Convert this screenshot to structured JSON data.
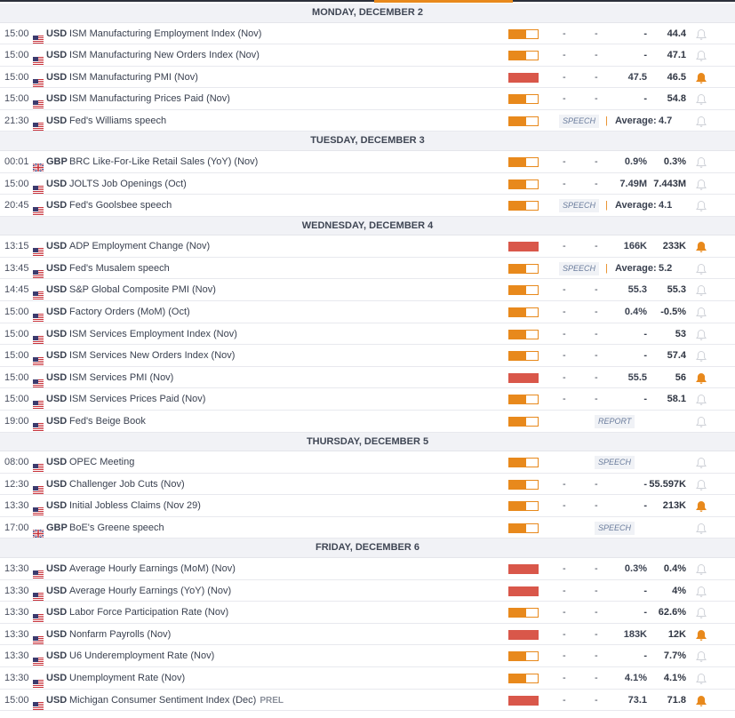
{
  "colors": {
    "accent": "#e8891c",
    "high_impact": "#d9574a",
    "medium_impact": "#e8891c"
  },
  "days": [
    {
      "label": "MONDAY, DECEMBER 2",
      "events": [
        {
          "time": "15:00",
          "country": "us",
          "currency": "USD",
          "name": "ISM Manufacturing Employment Index (Nov)",
          "impact": "medium",
          "actual": "-",
          "forecast": "-",
          "c3": "-",
          "previous": "44.4",
          "alert": false
        },
        {
          "time": "15:00",
          "country": "us",
          "currency": "USD",
          "name": "ISM Manufacturing New Orders Index (Nov)",
          "impact": "medium",
          "actual": "-",
          "forecast": "-",
          "c3": "-",
          "previous": "47.1",
          "alert": false
        },
        {
          "time": "15:00",
          "country": "us",
          "currency": "USD",
          "name": "ISM Manufacturing PMI (Nov)",
          "impact": "high",
          "actual": "-",
          "forecast": "-",
          "c3": "47.5",
          "previous": "46.5",
          "alert": true
        },
        {
          "time": "15:00",
          "country": "us",
          "currency": "USD",
          "name": "ISM Manufacturing Prices Paid (Nov)",
          "impact": "medium",
          "actual": "-",
          "forecast": "-",
          "c3": "-",
          "previous": "54.8",
          "alert": false
        },
        {
          "time": "21:30",
          "country": "us",
          "currency": "USD",
          "name": "Fed's Williams speech",
          "impact": "medium",
          "badge": "SPEECH",
          "avg_label": "Average:",
          "avg": "4.7",
          "alert": false
        }
      ]
    },
    {
      "label": "TUESDAY, DECEMBER 3",
      "events": [
        {
          "time": "00:01",
          "country": "gb",
          "currency": "GBP",
          "name": "BRC Like-For-Like Retail Sales (YoY) (Nov)",
          "impact": "medium",
          "actual": "-",
          "forecast": "-",
          "c3": "0.9%",
          "previous": "0.3%",
          "alert": false
        },
        {
          "time": "15:00",
          "country": "us",
          "currency": "USD",
          "name": "JOLTS Job Openings (Oct)",
          "impact": "medium",
          "actual": "-",
          "forecast": "-",
          "c3": "7.49M",
          "previous": "7.443M",
          "alert": false
        },
        {
          "time": "20:45",
          "country": "us",
          "currency": "USD",
          "name": "Fed's Goolsbee speech",
          "impact": "medium",
          "badge": "SPEECH",
          "avg_label": "Average:",
          "avg": "4.1",
          "alert": false
        }
      ]
    },
    {
      "label": "WEDNESDAY, DECEMBER 4",
      "events": [
        {
          "time": "13:15",
          "country": "us",
          "currency": "USD",
          "name": "ADP Employment Change (Nov)",
          "impact": "high",
          "actual": "-",
          "forecast": "-",
          "c3": "166K",
          "previous": "233K",
          "alert": true
        },
        {
          "time": "13:45",
          "country": "us",
          "currency": "USD",
          "name": "Fed's Musalem speech",
          "impact": "medium",
          "badge": "SPEECH",
          "avg_label": "Average:",
          "avg": "5.2",
          "alert": false
        },
        {
          "time": "14:45",
          "country": "us",
          "currency": "USD",
          "name": "S&P Global Composite PMI (Nov)",
          "impact": "medium",
          "actual": "-",
          "forecast": "-",
          "c3": "55.3",
          "previous": "55.3",
          "alert": false
        },
        {
          "time": "15:00",
          "country": "us",
          "currency": "USD",
          "name": "Factory Orders (MoM) (Oct)",
          "impact": "medium",
          "actual": "-",
          "forecast": "-",
          "c3": "0.4%",
          "previous": "-0.5%",
          "alert": false
        },
        {
          "time": "15:00",
          "country": "us",
          "currency": "USD",
          "name": "ISM Services Employment Index (Nov)",
          "impact": "medium",
          "actual": "-",
          "forecast": "-",
          "c3": "-",
          "previous": "53",
          "alert": false
        },
        {
          "time": "15:00",
          "country": "us",
          "currency": "USD",
          "name": "ISM Services New Orders Index (Nov)",
          "impact": "medium",
          "actual": "-",
          "forecast": "-",
          "c3": "-",
          "previous": "57.4",
          "alert": false
        },
        {
          "time": "15:00",
          "country": "us",
          "currency": "USD",
          "name": "ISM Services PMI (Nov)",
          "impact": "high",
          "actual": "-",
          "forecast": "-",
          "c3": "55.5",
          "previous": "56",
          "alert": true
        },
        {
          "time": "15:00",
          "country": "us",
          "currency": "USD",
          "name": "ISM Services Prices Paid (Nov)",
          "impact": "medium",
          "actual": "-",
          "forecast": "-",
          "c3": "-",
          "previous": "58.1",
          "alert": false
        },
        {
          "time": "19:00",
          "country": "us",
          "currency": "USD",
          "name": "Fed's Beige Book",
          "impact": "medium",
          "badge2": "REPORT",
          "alert": false
        }
      ]
    },
    {
      "label": "THURSDAY, DECEMBER 5",
      "events": [
        {
          "time": "08:00",
          "country": "us",
          "currency": "USD",
          "name": "OPEC Meeting",
          "impact": "medium",
          "badge2": "SPEECH",
          "alert": false
        },
        {
          "time": "12:30",
          "country": "us",
          "currency": "USD",
          "name": "Challenger Job Cuts (Nov)",
          "impact": "medium",
          "actual": "-",
          "forecast": "-",
          "c3": "-",
          "previous": "55.597K",
          "alert": false
        },
        {
          "time": "13:30",
          "country": "us",
          "currency": "USD",
          "name": "Initial Jobless Claims (Nov 29)",
          "impact": "medium",
          "actual": "-",
          "forecast": "-",
          "c3": "-",
          "previous": "213K",
          "alert": true
        },
        {
          "time": "17:00",
          "country": "gb",
          "currency": "GBP",
          "name": "BoE's Greene speech",
          "impact": "medium",
          "badge2": "SPEECH",
          "alert": false
        }
      ]
    },
    {
      "label": "FRIDAY, DECEMBER 6",
      "events": [
        {
          "time": "13:30",
          "country": "us",
          "currency": "USD",
          "name": "Average Hourly Earnings (MoM) (Nov)",
          "impact": "high",
          "actual": "-",
          "forecast": "-",
          "c3": "0.3%",
          "previous": "0.4%",
          "alert": false
        },
        {
          "time": "13:30",
          "country": "us",
          "currency": "USD",
          "name": "Average Hourly Earnings (YoY) (Nov)",
          "impact": "high",
          "actual": "-",
          "forecast": "-",
          "c3": "-",
          "previous": "4%",
          "alert": false
        },
        {
          "time": "13:30",
          "country": "us",
          "currency": "USD",
          "name": "Labor Force Participation Rate (Nov)",
          "impact": "medium",
          "actual": "-",
          "forecast": "-",
          "c3": "-",
          "previous": "62.6%",
          "alert": false
        },
        {
          "time": "13:30",
          "country": "us",
          "currency": "USD",
          "name": "Nonfarm Payrolls (Nov)",
          "impact": "high",
          "actual": "-",
          "forecast": "-",
          "c3": "183K",
          "previous": "12K",
          "alert": true
        },
        {
          "time": "13:30",
          "country": "us",
          "currency": "USD",
          "name": "U6 Underemployment Rate (Nov)",
          "impact": "medium",
          "actual": "-",
          "forecast": "-",
          "c3": "-",
          "previous": "7.7%",
          "alert": false
        },
        {
          "time": "13:30",
          "country": "us",
          "currency": "USD",
          "name": "Unemployment Rate (Nov)",
          "impact": "medium",
          "actual": "-",
          "forecast": "-",
          "c3": "4.1%",
          "previous": "4.1%",
          "alert": false
        },
        {
          "time": "15:00",
          "country": "us",
          "currency": "USD",
          "name": "Michigan Consumer Sentiment Index (Dec)",
          "tag": "PREL",
          "impact": "high",
          "actual": "-",
          "forecast": "-",
          "c3": "73.1",
          "previous": "71.8",
          "alert": true
        }
      ]
    }
  ]
}
